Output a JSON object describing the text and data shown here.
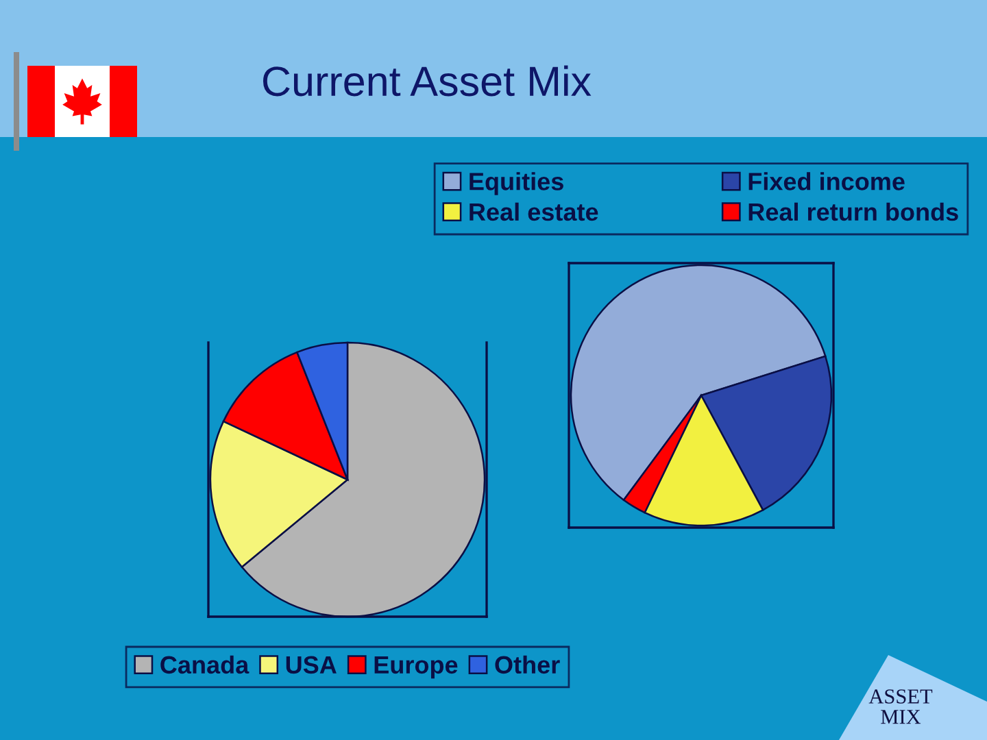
{
  "chart_data": [
    {
      "type": "pie",
      "title": "Current Asset Mix",
      "categories": [
        "Equities",
        "Fixed income",
        "Real estate",
        "Real return bonds"
      ],
      "values": [
        60,
        22,
        15,
        3
      ],
      "colors": [
        "#93acd9",
        "#2b45a8",
        "#f2f040",
        "#ff0000"
      ],
      "legend": "top",
      "annotations": [
        "ASSET MIX"
      ]
    },
    {
      "type": "pie",
      "categories": [
        "Canada",
        "USA",
        "Europe",
        "Other"
      ],
      "values": [
        64,
        18,
        12,
        6
      ],
      "colors": [
        "#b4b4b4",
        "#f5f57a",
        "#ff0000",
        "#2f62e0"
      ],
      "legend": "bottom"
    }
  ]
}
